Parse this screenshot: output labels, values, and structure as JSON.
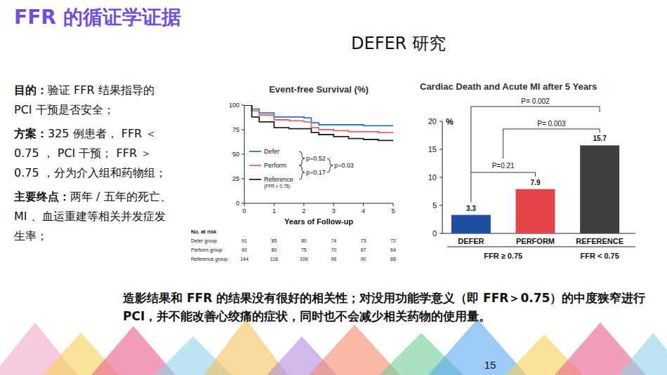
{
  "slide": {
    "title": "FFR 的循证学证据",
    "subtitle": "DEFER 研究",
    "left_text": [
      {
        "label": "目的：",
        "text": "验证 FFR 结果指导的 PCI 干预是否安全；"
      },
      {
        "label": "方案：",
        "text": "325 例患者， FFR ＜ 0.75 ， PCI 干预； FFR ＞ 0.75 ，分为介入组和药物组；"
      },
      {
        "label": "主要终点：",
        "text": "两年 / 五年的死亡、 MI 、血运重建等相关并发症发生率；"
      }
    ],
    "conclusion": "造影结果和 FFR 的结果没有很好的相关性；对没用功能学意义（即 FFR＞0.75）的中度狭窄进行 PCI，并不能改善心绞痛的症状，同时也不会减少相关药物的使用量。",
    "page_number": 15
  },
  "chart_data": [
    {
      "type": "line",
      "title": "Event-free Survival (%)",
      "x_label": "Years of Follow-up",
      "x": [
        0,
        0.25,
        0.5,
        1,
        1.5,
        2,
        2.25,
        2.5,
        3,
        3.5,
        4,
        4.5,
        5
      ],
      "xlim": [
        0,
        5
      ],
      "xticks": [
        0,
        1,
        2,
        3,
        4,
        5
      ],
      "ylim": [
        0,
        100
      ],
      "yticks": [
        0,
        25,
        50,
        75,
        100
      ],
      "grid": false,
      "legend": "lower left",
      "line_style": "step",
      "legend_note": "(FFR < 0.75)",
      "annotations": [
        "p=0.52",
        "p=0.17",
        "p=0.03"
      ],
      "series": [
        {
          "name": "Defer",
          "color": "#2e75b6",
          "values": [
            100,
            96,
            92,
            88,
            88,
            87,
            82,
            80,
            80,
            80,
            79,
            79,
            79
          ]
        },
        {
          "name": "Perform",
          "color": "#e8636b",
          "values": [
            100,
            94,
            90,
            85,
            84,
            83,
            77,
            75,
            74,
            73,
            73,
            72,
            72
          ]
        },
        {
          "name": "Reference",
          "color": "#222222",
          "values": [
            100,
            88,
            83,
            77,
            76,
            76,
            72,
            70,
            68,
            66,
            65,
            64,
            63
          ]
        }
      ],
      "at_risk": {
        "title": "No. at risk",
        "rows": [
          {
            "name": "Defer group",
            "values": [
              91,
              85,
              80,
              74,
              73,
              72
            ]
          },
          {
            "name": "Perform group",
            "values": [
              90,
              80,
              75,
              70,
              67,
              64
            ]
          },
          {
            "name": "Reference group",
            "values": [
              144,
              116,
              106,
              96,
              90,
              88
            ]
          }
        ]
      }
    },
    {
      "type": "bar",
      "title": "Cardiac Death and Acute MI after 5 Years",
      "y_label": "%",
      "categories": [
        "DEFER",
        "PERFORM",
        "REFERENCE"
      ],
      "values": [
        3.3,
        7.9,
        15.7
      ],
      "colors": [
        "#1f4fa0",
        "#e5434a",
        "#3d3d3d"
      ],
      "ylim": [
        0,
        20
      ],
      "yticks": [
        0,
        5,
        10,
        15,
        20
      ],
      "grid": false,
      "data_labels": true,
      "groups": [
        "FFR ≥ 0.75",
        "FFR < 0.75"
      ],
      "annotations": [
        "P= 0.002",
        "P= 0.003",
        "P=0.21"
      ]
    }
  ]
}
